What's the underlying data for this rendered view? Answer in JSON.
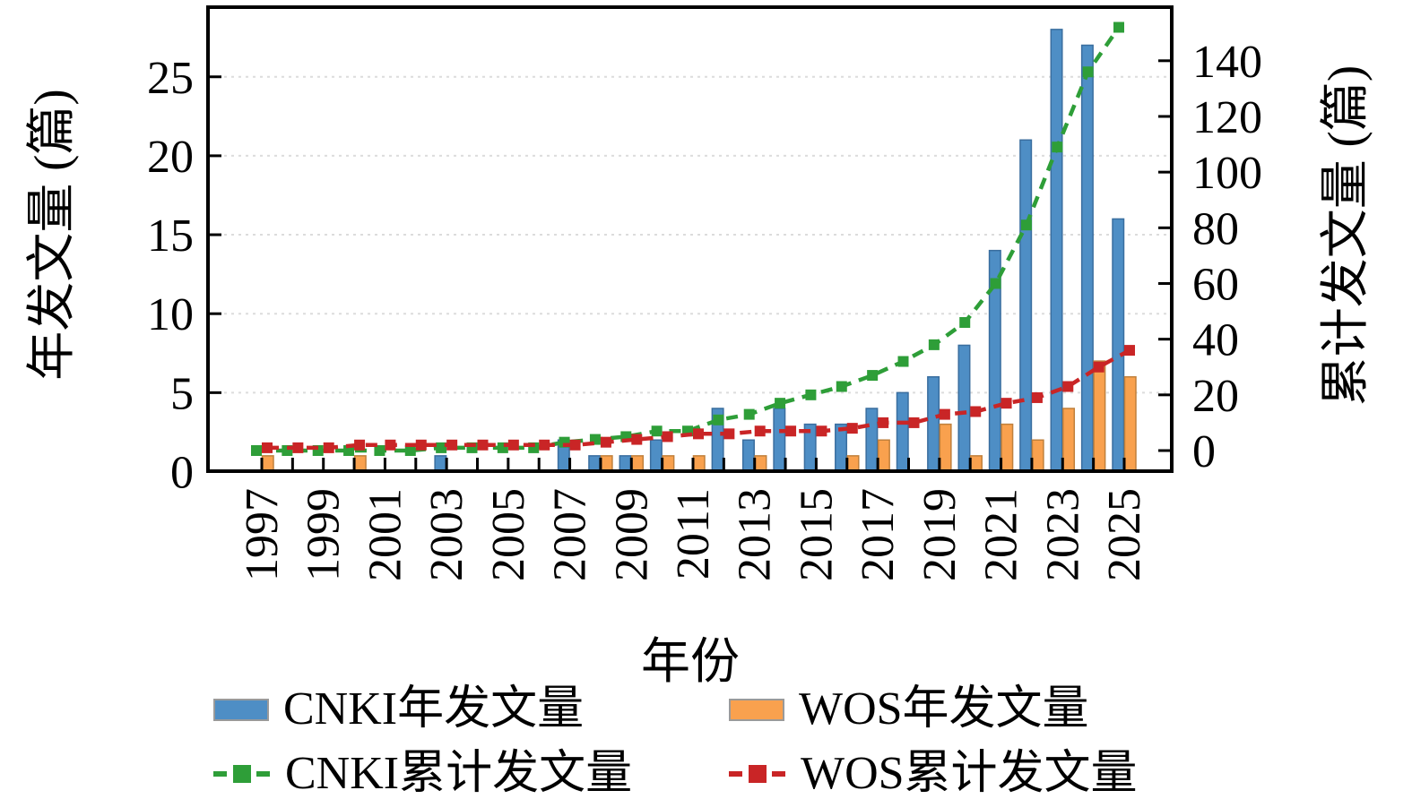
{
  "figure": {
    "background": "#ffffff",
    "x_axis": {
      "title": "年份",
      "tick_labels": [
        "1997",
        "1999",
        "2001",
        "2003",
        "2005",
        "2007",
        "2009",
        "2011",
        "2013",
        "2015",
        "2017",
        "2019",
        "2021",
        "2023",
        "2025"
      ]
    },
    "left_axis": {
      "title": "年发文量 (篇)",
      "ticks": [
        0,
        5,
        10,
        15,
        20,
        25
      ]
    },
    "right_axis": {
      "title": "累计发文量 (篇)",
      "ticks": [
        0,
        20,
        40,
        60,
        80,
        100,
        120,
        140
      ]
    },
    "legend": [
      {
        "label": "CNKI年发文量",
        "swatch": "bar",
        "series": 0
      },
      {
        "label": "WOS年发文量",
        "swatch": "bar",
        "series": 1
      },
      {
        "label": "CNKI累计发文量",
        "swatch": "line",
        "series": 2
      },
      {
        "label": "WOS累计发文量",
        "swatch": "line",
        "series": 3
      }
    ],
    "grid": {
      "on": true,
      "color": "#dcdcdc"
    }
  },
  "chart_data": {
    "type": "bar",
    "subtype": "grouped-bars-with-cumulative-lines-dual-axis",
    "x": [
      1997,
      1998,
      1999,
      2000,
      2001,
      2002,
      2003,
      2004,
      2005,
      2006,
      2007,
      2008,
      2009,
      2010,
      2011,
      2012,
      2013,
      2014,
      2015,
      2016,
      2017,
      2018,
      2019,
      2020,
      2021,
      2022,
      2023,
      2024,
      2025
    ],
    "xlabel": "年份",
    "ylabel_left": "年发文量 (篇)",
    "ylabel_right": "累计发文量 (篇)",
    "ylim_left": [
      0,
      29.4
    ],
    "ylim_right": [
      0,
      140
    ],
    "legend_position": "below",
    "series": [
      {
        "name": "CNKI年发文量",
        "type": "bar",
        "axis": "left",
        "color": "#4E8EC5",
        "edge": "#3A6E9F",
        "values": [
          0,
          0,
          0,
          0,
          0,
          0,
          1,
          0,
          0,
          0,
          2,
          1,
          1,
          2,
          0,
          4,
          2,
          4,
          3,
          3,
          4,
          5,
          6,
          8,
          14,
          21,
          28,
          27,
          16
        ]
      },
      {
        "name": "WOS年发文量",
        "type": "bar",
        "axis": "left",
        "color": "#F9A14E",
        "edge": "#C0803C",
        "values": [
          1,
          0,
          0,
          1,
          0,
          0,
          0,
          0,
          0,
          0,
          0,
          1,
          1,
          1,
          1,
          0,
          1,
          0,
          0,
          1,
          2,
          0,
          3,
          1,
          3,
          2,
          4,
          7,
          6
        ]
      },
      {
        "name": "CNKI累计发文量",
        "type": "line",
        "axis": "right",
        "style": "dashed-square-marker",
        "color": "#2E9E38",
        "values": [
          0,
          0,
          0,
          0,
          0,
          0,
          1,
          1,
          1,
          1,
          3,
          4,
          5,
          7,
          7,
          11,
          13,
          17,
          20,
          23,
          27,
          32,
          38,
          46,
          60,
          81,
          109,
          136,
          152
        ]
      },
      {
        "name": "WOS累计发文量",
        "type": "line",
        "axis": "right",
        "style": "dashed-square-marker",
        "color": "#C92526",
        "values": [
          1,
          1,
          1,
          2,
          2,
          2,
          2,
          2,
          2,
          2,
          2,
          3,
          4,
          5,
          6,
          6,
          7,
          7,
          7,
          8,
          10,
          10,
          13,
          14,
          17,
          19,
          23,
          30,
          36
        ]
      }
    ]
  }
}
